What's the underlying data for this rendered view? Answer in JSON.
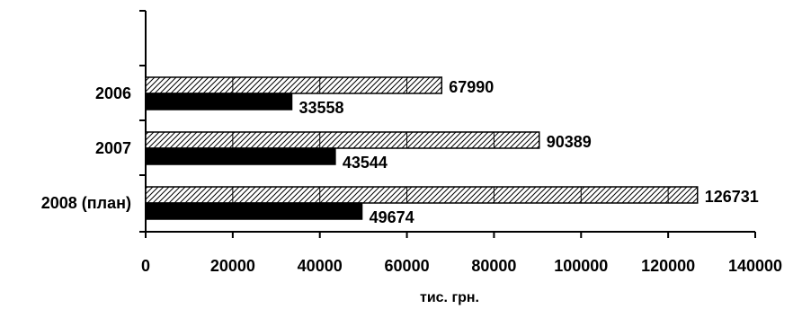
{
  "chart_data": {
    "type": "bar",
    "orientation": "horizontal",
    "categories": [
      "2006",
      "2007",
      "2008 (план)"
    ],
    "series": [
      {
        "values": [
          67990,
          90389,
          126731
        ],
        "fill": "hatched",
        "color": "#000000"
      },
      {
        "values": [
          33558,
          43544,
          49674
        ],
        "fill": "solid",
        "color": "#000000"
      }
    ],
    "xlabel": "тис. грн.",
    "ylabel": "",
    "xlim": [
      0,
      140000
    ],
    "xticks": [
      0,
      20000,
      40000,
      60000,
      80000,
      100000,
      120000,
      140000
    ],
    "xtick_labels": [
      "0",
      "20000",
      "40000",
      "60000",
      "80000",
      "100000",
      "120000",
      "140000"
    ],
    "grid": false,
    "legend": "none"
  }
}
